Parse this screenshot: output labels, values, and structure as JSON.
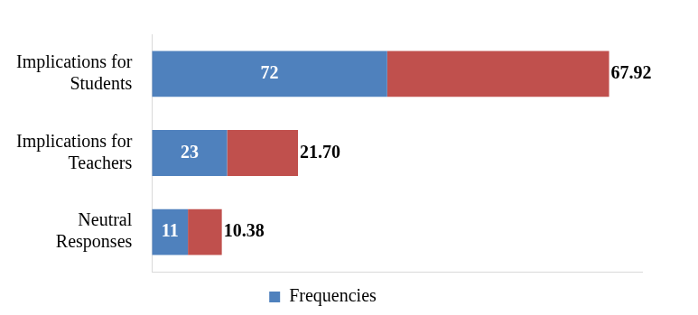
{
  "chart_data": {
    "type": "bar",
    "orientation": "horizontal",
    "stacked": true,
    "categories": [
      "Implications for Students",
      "Implications for Teachers",
      "Neutral Responses"
    ],
    "series": [
      {
        "name": "Frequencies",
        "color": "#4f81bd",
        "values": [
          72,
          23,
          11
        ]
      },
      {
        "color": "#c0504d",
        "values": [
          67.92,
          21.7,
          10.38
        ],
        "value_labels": [
          "67.92",
          "21.70",
          "10.38"
        ]
      }
    ],
    "xlim": [
      0,
      150
    ],
    "grid": false,
    "tick_labels": "y",
    "data_labels": true,
    "legend": "bottom"
  }
}
